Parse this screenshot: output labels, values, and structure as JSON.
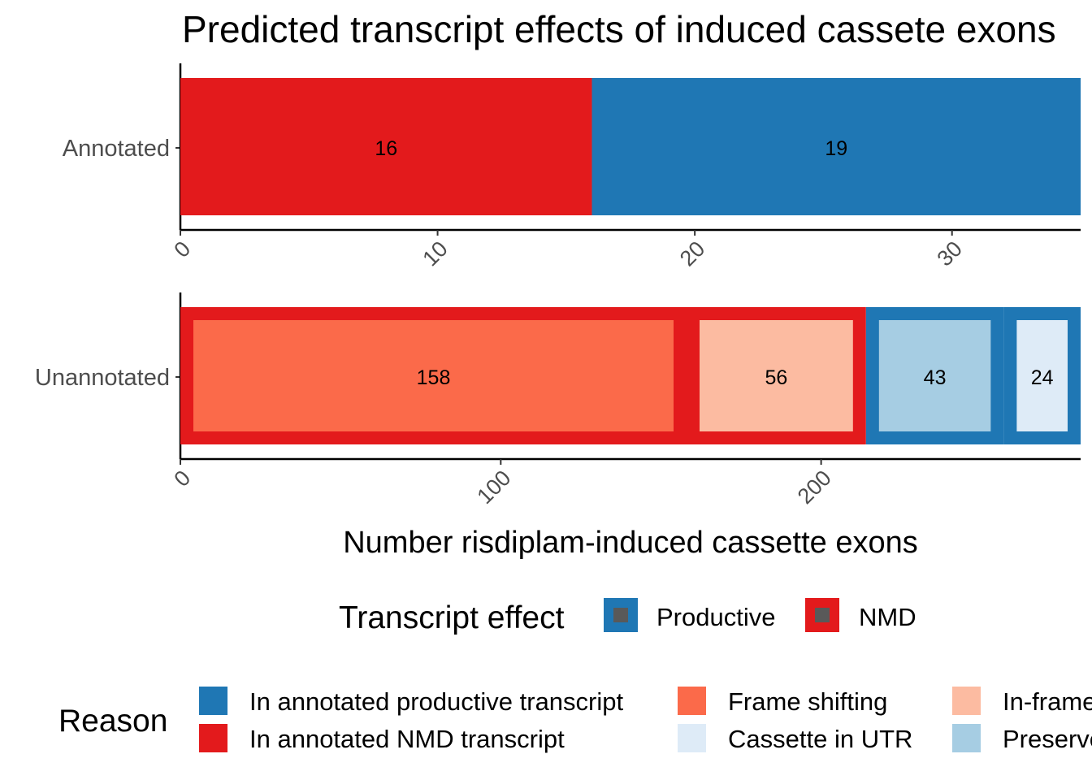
{
  "chart_data": {
    "type": "bar",
    "orientation": "horizontal",
    "stacked": true,
    "title": "Predicted transcript effects of induced cassete exons",
    "xlabel": "Number risdiplam-induced cassette exons",
    "ylabel": "",
    "colors": {
      "In annotated productive transcript": "#1f77b4",
      "In annotated NMD transcript": "#e31a1c",
      "Frame shifting": "#fb6a4a",
      "Cassette in UTR": "#deebf7",
      "In-frame stop codon": "#fcbba1",
      "Preserves reading frame": "#a6cde3",
      "Productive": "#1f77b4",
      "NMD": "#e31a1c"
    },
    "panels": [
      {
        "category": "Annotated",
        "xlim": [
          0,
          35
        ],
        "ticks": [
          0,
          10,
          20,
          30
        ],
        "segments": [
          {
            "reason": "In annotated NMD transcript",
            "effect": "NMD",
            "value": 16
          },
          {
            "reason": "In annotated productive transcript",
            "effect": "Productive",
            "value": 19
          }
        ]
      },
      {
        "category": "Unannotated",
        "xlim": [
          0,
          281
        ],
        "ticks": [
          0,
          100,
          200
        ],
        "segments": [
          {
            "reason": "Frame shifting",
            "effect": "NMD",
            "value": 158
          },
          {
            "reason": "In-frame stop codon",
            "effect": "NMD",
            "value": 56
          },
          {
            "reason": "Preserves reading frame",
            "effect": "Productive",
            "value": 43
          },
          {
            "reason": "Cassette in UTR",
            "effect": "Productive",
            "value": 24
          }
        ]
      }
    ],
    "legend": {
      "placement": "bottom",
      "effect": {
        "title": "Transcript effect",
        "items": [
          "Productive",
          "NMD"
        ]
      },
      "reason": {
        "title": "Reason",
        "items": [
          "In annotated productive transcript",
          "In annotated NMD transcript",
          "Frame shifting",
          "Cassette in UTR",
          "In-frame stop codon",
          "Preserves reading frame"
        ]
      }
    }
  }
}
